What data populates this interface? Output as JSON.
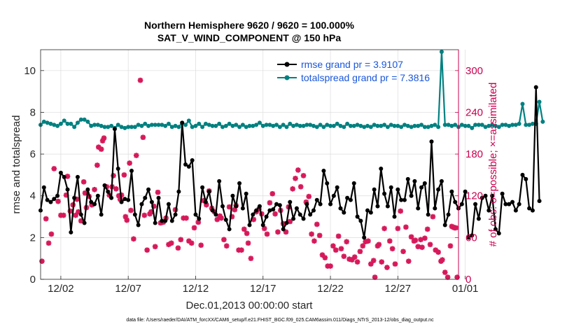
{
  "chart_data": {
    "type": "line",
    "title": "Northern Hemisphere 9620 / 9620 = 100.000%",
    "subtitle": "SAT_V_WIND_COMPONENT @ 150 hPa",
    "xlabel": "Dec.01,2013 00:00:00 start",
    "ylabel_left": "rmse and totalspread",
    "ylabel_right": "# of obs: o=possible; ×=assimilated",
    "footnote": "data file: /Users/raeder/DAI/ATM_forcXX/CAM6_setup/f.e21.FHIST_BGC.f09_025.CAM6assim.011/Diags_NTrS_2013-12/obs_diag_output.nc",
    "x_range": [
      0.5,
      31.5
    ],
    "x_ticks": [
      {
        "x": 2,
        "label": "12/02"
      },
      {
        "x": 7,
        "label": "12/07"
      },
      {
        "x": 12,
        "label": "12/12"
      },
      {
        "x": 17,
        "label": "12/17"
      },
      {
        "x": 22,
        "label": "12/22"
      },
      {
        "x": 27,
        "label": "12/27"
      },
      {
        "x": 32,
        "label": "01/01"
      }
    ],
    "ylim_left": [
      0,
      11
    ],
    "yticks_left": [
      0,
      2,
      4,
      6,
      8,
      10
    ],
    "ylim_right": [
      0,
      330
    ],
    "yticks_right": [
      0,
      60,
      120,
      180,
      240,
      300
    ],
    "grid": true,
    "legend_position": "top-right",
    "colors": {
      "rmse": "#000000",
      "spread": "#008080",
      "obs": "#d6195a",
      "right_axis": "#c8004e"
    },
    "series": [
      {
        "name": "rmse grand pr = 3.9107",
        "axis": "left",
        "start": 0.5,
        "step": 0.25,
        "values": [
          3.3,
          4.4,
          3.8,
          3.7,
          3.85,
          4.0,
          5.1,
          4.9,
          4.3,
          2.25,
          3.9,
          4.9,
          3.1,
          2.7,
          4.3,
          3.7,
          3.6,
          4.0,
          3.1,
          4.5,
          4.2,
          3.9,
          7.2,
          5.3,
          3.7,
          3.85,
          3.8,
          5.2,
          3.1,
          2.6,
          3.6,
          3.9,
          4.3,
          3.7,
          2.7,
          3.9,
          2.8,
          2.8,
          3.6,
          2.8,
          3.1,
          4.2,
          7.5,
          5.5,
          5.4,
          5.7,
          3.1,
          2.9,
          4.4,
          3.7,
          4.2,
          3.3,
          3.1,
          4.7,
          3.5,
          2.85,
          2.4,
          4.0,
          3.5,
          4.6,
          3.4,
          4.1,
          2.6,
          3.1,
          3.3,
          3.5,
          2.6,
          3.0,
          3.3,
          3.35,
          3.6,
          3.55,
          2.4,
          2.7,
          3.7,
          2.9,
          3.4,
          3.1,
          2.9,
          3.6,
          3.1,
          3.3,
          3.8,
          3.6,
          5.2,
          4.6,
          3.6,
          4.0,
          4.4,
          3.4,
          3.2,
          3.9,
          3.8,
          4.6,
          3.0,
          2.8,
          2.0,
          3.3,
          3.2,
          4.3,
          3.5,
          5.3,
          4.1,
          3.5,
          4.4,
          3.0,
          4.3,
          3.8,
          3.8,
          4.8,
          4.0,
          4.7,
          3.4,
          4.4,
          4.6,
          3.1,
          6.6,
          3.4,
          4.3,
          4.7,
          2.6,
          3.1,
          4.2,
          3.7,
          3.4,
          3.6,
          4.2,
          2.0,
          2.1,
          3.6,
          2.9,
          3.9,
          4.0,
          3.3,
          4.0,
          2.4,
          2.2,
          4.1,
          3.6,
          3.6,
          3.7,
          3.3,
          3.6,
          5.0,
          4.8,
          3.4,
          3.3,
          9.2,
          3.75
        ]
      },
      {
        "name": "totalspread grand pr = 7.3816",
        "axis": "left",
        "start": 0.5,
        "step": 0.25,
        "values": [
          7.4,
          7.55,
          7.5,
          7.45,
          7.4,
          7.35,
          7.45,
          7.6,
          7.45,
          7.45,
          7.3,
          7.5,
          7.65,
          7.65,
          7.55,
          7.35,
          7.4,
          7.4,
          7.35,
          7.3,
          7.3,
          7.35,
          7.25,
          7.4,
          7.3,
          7.25,
          7.3,
          7.3,
          7.3,
          7.4,
          7.35,
          7.45,
          7.35,
          7.4,
          7.4,
          7.4,
          7.4,
          7.35,
          7.45,
          7.3,
          7.35,
          7.3,
          7.5,
          7.4,
          7.6,
          7.3,
          7.35,
          7.45,
          7.3,
          7.45,
          7.4,
          7.35,
          7.35,
          7.45,
          7.3,
          7.35,
          7.45,
          7.35,
          7.4,
          7.3,
          7.4,
          7.3,
          7.35,
          7.35,
          7.4,
          7.5,
          7.35,
          7.4,
          7.4,
          7.35,
          7.4,
          7.3,
          7.4,
          7.3,
          7.45,
          7.35,
          7.4,
          7.35,
          7.35,
          7.4,
          7.4,
          7.35,
          7.3,
          7.4,
          7.3,
          7.4,
          7.35,
          7.35,
          7.45,
          7.35,
          7.3,
          7.45,
          7.35,
          7.35,
          7.4,
          7.35,
          7.3,
          7.35,
          7.3,
          7.4,
          7.35,
          7.35,
          7.4,
          7.3,
          7.4,
          7.35,
          7.35,
          7.3,
          7.4,
          7.35,
          7.3,
          7.35,
          7.35,
          7.4,
          7.3,
          7.3,
          7.35,
          7.4,
          7.3,
          10.9,
          7.4,
          7.4,
          7.35,
          7.4,
          7.3,
          7.4,
          7.35,
          7.35,
          7.25,
          7.4,
          7.4,
          7.4,
          7.3,
          7.35,
          7.4,
          7.35,
          7.3,
          7.4,
          7.4,
          7.35,
          7.4,
          7.4,
          7.45,
          8.4,
          7.4,
          7.4,
          7.45,
          7.45,
          8.5,
          7.55
        ]
      },
      {
        "name": "# of obs assimilated",
        "axis": "right",
        "marker": "x",
        "points": [
          [
            0.6,
            26
          ],
          [
            0.9,
            87
          ],
          [
            1.1,
            52
          ],
          [
            1.3,
            65
          ],
          [
            1.5,
            159
          ],
          [
            1.8,
            112
          ],
          [
            2.0,
            92
          ],
          [
            2.2,
            92
          ],
          [
            2.4,
            121
          ],
          [
            2.5,
            148
          ],
          [
            2.7,
            98
          ],
          [
            2.9,
            107
          ],
          [
            3.1,
            92
          ],
          [
            3.2,
            115
          ],
          [
            3.3,
            97
          ],
          [
            3.5,
            84
          ],
          [
            3.7,
            140
          ],
          [
            3.8,
            124
          ],
          [
            3.9,
            103
          ],
          [
            4.1,
            119
          ],
          [
            4.3,
            107
          ],
          [
            4.5,
            129
          ],
          [
            4.7,
            164
          ],
          [
            4.8,
            190
          ],
          [
            5.0,
            187
          ],
          [
            5.1,
            199
          ],
          [
            5.2,
            203
          ],
          [
            5.4,
            133
          ],
          [
            5.6,
            121
          ],
          [
            5.8,
            133
          ],
          [
            5.9,
            149
          ],
          [
            6.1,
            130
          ],
          [
            6.3,
            120
          ],
          [
            6.4,
            115
          ],
          [
            6.5,
            121
          ],
          [
            6.7,
            150
          ],
          [
            6.8,
            90
          ],
          [
            6.9,
            85
          ],
          [
            7.1,
            167
          ],
          [
            7.2,
            99
          ],
          [
            7.4,
            58
          ],
          [
            7.6,
            178
          ],
          [
            7.9,
            286
          ],
          [
            8.1,
            204
          ],
          [
            8.2,
            92
          ],
          [
            8.4,
            42
          ],
          [
            8.6,
            94
          ],
          [
            8.7,
            97
          ],
          [
            8.9,
            105
          ],
          [
            9.0,
            47
          ],
          [
            9.2,
            125
          ],
          [
            9.4,
            81
          ],
          [
            9.6,
            82
          ],
          [
            9.8,
            88
          ],
          [
            10.0,
            50
          ],
          [
            10.2,
            52
          ],
          [
            10.5,
            100
          ],
          [
            10.7,
            45
          ],
          [
            10.9,
            57
          ],
          [
            11.1,
            88
          ],
          [
            11.3,
            88
          ],
          [
            11.5,
            55
          ],
          [
            11.7,
            52
          ],
          [
            11.9,
            74
          ],
          [
            12.2,
            82
          ],
          [
            12.4,
            49
          ],
          [
            12.6,
            113
          ],
          [
            12.8,
            107
          ],
          [
            13.0,
            127
          ],
          [
            13.2,
            102
          ],
          [
            13.4,
            97
          ],
          [
            13.6,
            86
          ],
          [
            13.8,
            91
          ],
          [
            13.9,
            88
          ],
          [
            14.1,
            57
          ],
          [
            14.3,
            48
          ],
          [
            14.5,
            104
          ],
          [
            14.7,
            90
          ],
          [
            14.9,
            100
          ],
          [
            15.0,
            106
          ],
          [
            15.2,
            42
          ],
          [
            15.4,
            42
          ],
          [
            15.6,
            72
          ],
          [
            15.8,
            66
          ],
          [
            15.9,
            52
          ],
          [
            16.1,
            30
          ],
          [
            16.3,
            86
          ],
          [
            16.5,
            97
          ],
          [
            16.7,
            101
          ],
          [
            16.9,
            94
          ],
          [
            17.1,
            73
          ],
          [
            17.3,
            65
          ],
          [
            17.5,
            110
          ],
          [
            17.7,
            123
          ],
          [
            17.9,
            94
          ],
          [
            18.1,
            68
          ],
          [
            18.3,
            99
          ],
          [
            18.5,
            80
          ],
          [
            18.7,
            68
          ],
          [
            18.9,
            104
          ],
          [
            19.0,
            83
          ],
          [
            19.2,
            130
          ],
          [
            19.4,
            145
          ],
          [
            19.6,
            157
          ],
          [
            19.8,
            133
          ],
          [
            20.0,
            149
          ],
          [
            20.2,
            111
          ],
          [
            20.4,
            119
          ],
          [
            20.6,
            65
          ],
          [
            20.8,
            55
          ],
          [
            21.0,
            79
          ],
          [
            21.2,
            63
          ],
          [
            21.4,
            35
          ],
          [
            21.6,
            31
          ],
          [
            21.8,
            19
          ],
          [
            22.0,
            19
          ],
          [
            22.2,
            48
          ],
          [
            22.4,
            42
          ],
          [
            22.6,
            62
          ],
          [
            22.8,
            44
          ],
          [
            23.0,
            33
          ],
          [
            23.2,
            54
          ],
          [
            23.4,
            29
          ],
          [
            23.6,
            28
          ],
          [
            23.8,
            32
          ],
          [
            24.0,
            25
          ],
          [
            24.2,
            40
          ],
          [
            24.4,
            48
          ],
          [
            24.6,
            54
          ],
          [
            24.8,
            55
          ],
          [
            25.0,
            22
          ],
          [
            25.2,
            27
          ],
          [
            25.3,
            3
          ],
          [
            25.5,
            48
          ],
          [
            25.6,
            50
          ],
          [
            25.8,
            25
          ],
          [
            26.0,
            73
          ],
          [
            26.2,
            17
          ],
          [
            26.4,
            55
          ],
          [
            26.6,
            44
          ],
          [
            26.8,
            22
          ],
          [
            27.0,
            73
          ],
          [
            27.2,
            98
          ],
          [
            27.4,
            40
          ],
          [
            27.6,
            75
          ],
          [
            27.8,
            26
          ],
          [
            28.0,
            61
          ],
          [
            28.2,
            55
          ],
          [
            28.3,
            56
          ],
          [
            28.5,
            47
          ],
          [
            28.7,
            57
          ],
          [
            28.8,
            46
          ],
          [
            29.0,
            59
          ],
          [
            29.2,
            72
          ],
          [
            29.4,
            50
          ],
          [
            29.6,
            90
          ],
          [
            29.8,
            42
          ],
          [
            30.0,
            39
          ],
          [
            30.2,
            26
          ],
          [
            30.3,
            28
          ],
          [
            30.5,
            10
          ],
          [
            30.7,
            3
          ],
          [
            30.9,
            48
          ],
          [
            31.0,
            76
          ],
          [
            31.1,
            75
          ],
          [
            31.2,
            74
          ],
          [
            31.3,
            74
          ],
          [
            31.4,
            3
          ]
        ]
      }
    ]
  }
}
